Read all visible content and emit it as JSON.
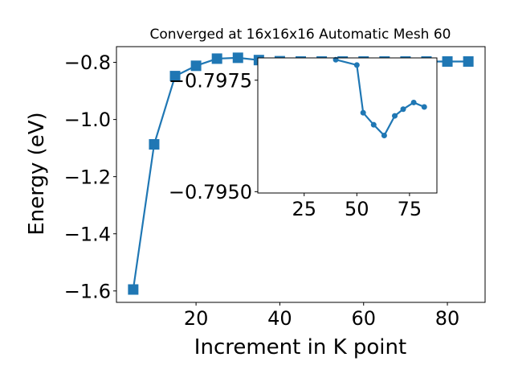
{
  "chart_data": [
    {
      "type": "line",
      "title": "Converged at 16x16x16 Automatic Mesh 60",
      "xlabel": "Increment in K point",
      "ylabel": "Energy (eV)",
      "xlim": [
        1.0,
        89.0
      ],
      "ylim": [
        -1.64,
        -0.745
      ],
      "xticks": [
        20,
        40,
        60,
        80
      ],
      "xtick_labels": [
        "20",
        "40",
        "60",
        "80"
      ],
      "yticks": [
        -1.6,
        -1.4,
        -1.2,
        -1.0,
        -0.8
      ],
      "ytick_labels": [
        "−1.6",
        "−1.4",
        "−1.2",
        "−1.0",
        "−0.8"
      ],
      "grid": false,
      "marker": "square",
      "color": "#1f77b4",
      "series": [
        {
          "x": [
            5,
            10,
            15,
            20,
            25,
            30,
            35,
            40,
            45,
            50,
            55,
            60,
            65,
            70,
            75,
            80,
            85
          ],
          "y": [
            -1.595,
            -1.087,
            -0.848,
            -0.812,
            -0.787,
            -0.784,
            -0.792,
            -0.796,
            -0.797,
            -0.797,
            -0.797,
            -0.797,
            -0.797,
            -0.797,
            -0.797,
            -0.797,
            -0.797
          ]
        }
      ]
    },
    {
      "type": "line",
      "inset": true,
      "xlim": [
        3.0,
        88.0
      ],
      "ylim": [
        -0.79497,
        -0.798
      ],
      "xticks": [
        25,
        50,
        75
      ],
      "xtick_labels": [
        "25",
        "50",
        "75"
      ],
      "yticks": [
        -0.795,
        -0.7975
      ],
      "ytick_labels": [
        "−0.7950",
        "−0.7975"
      ],
      "grid": false,
      "marker": "circle",
      "color": "#1f77b4",
      "series": [
        {
          "x": [
            40,
            50,
            53,
            58,
            63,
            68,
            72,
            77,
            82
          ],
          "y": [
            -0.79796,
            -0.79784,
            -0.79677,
            -0.7965,
            -0.79626,
            -0.7967,
            -0.79685,
            -0.797,
            -0.7969
          ]
        }
      ]
    }
  ]
}
